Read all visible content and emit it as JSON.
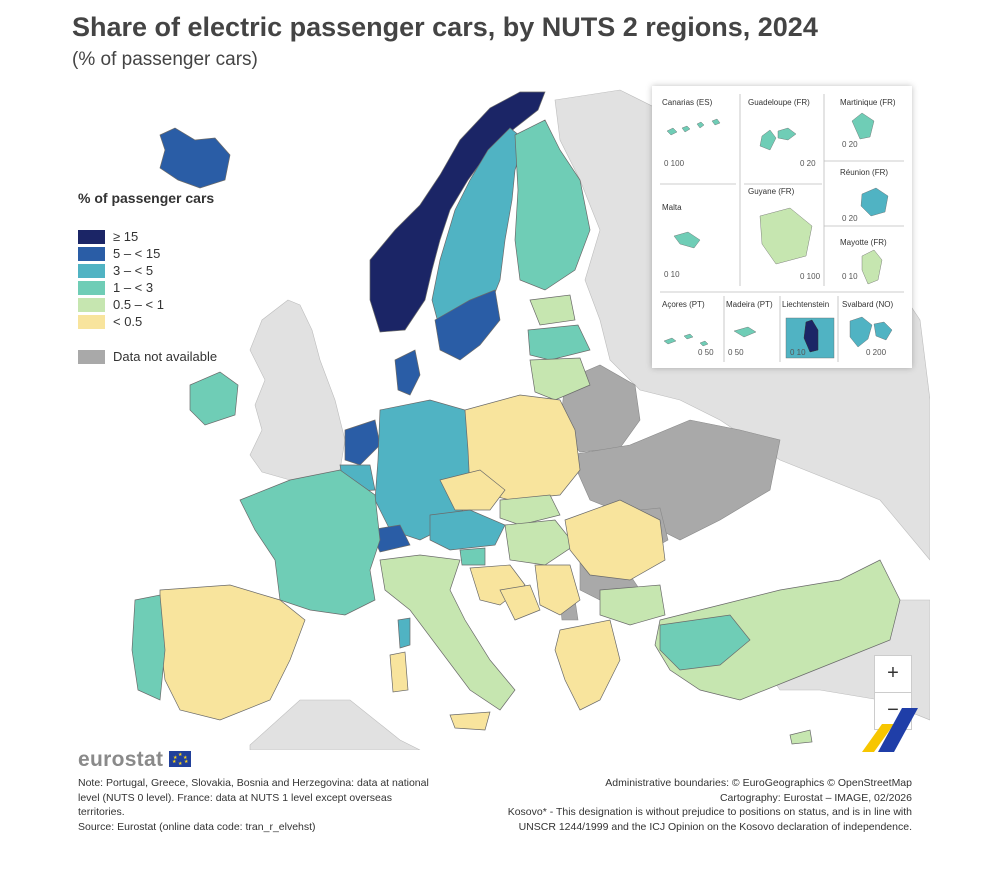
{
  "header": {
    "title": "Share of electric passenger cars, by NUTS 2 regions, 2024",
    "subtitle": "(% of passenger cars)"
  },
  "legend": {
    "title": "% of passenger cars",
    "classes": [
      {
        "label": "≥ 15",
        "color": "#1b2566"
      },
      {
        "label": "5 – < 15",
        "color": "#2a5da6"
      },
      {
        "label": "3 – < 5",
        "color": "#50b3c3"
      },
      {
        "label": "1 – < 3",
        "color": "#6fcdb6"
      },
      {
        "label": "0.5 – < 1",
        "color": "#c6e6b0"
      },
      {
        "label": "< 0.5",
        "color": "#f8e49d"
      }
    ],
    "na": {
      "label": "Data not available",
      "color": "#a9a9a9"
    }
  },
  "colors": {
    "non_eu": "#e1e1e1",
    "sea": "#ffffff",
    "border": "#707070"
  },
  "insets": {
    "canarias": {
      "label": "Canarias (ES)",
      "scale": "0   100"
    },
    "guadeloupe": {
      "label": "Guadeloupe (FR)",
      "scale": "0   20"
    },
    "martinique": {
      "label": "Martinique (FR)",
      "scale": "0   20"
    },
    "reunion": {
      "label": "Réunion (FR)",
      "scale": "0   20"
    },
    "malta": {
      "label": "Malta",
      "scale": "0   10"
    },
    "guyane": {
      "label": "Guyane (FR)",
      "scale": "0   100"
    },
    "mayotte": {
      "label": "Mayotte (FR)",
      "scale": "0   10"
    },
    "acores": {
      "label": "Açores (PT)",
      "scale": "0   50"
    },
    "madeira": {
      "label": "Madeira (PT)",
      "scale": "0    50"
    },
    "liechtenstein": {
      "label": "Liechtenstein",
      "scale": "0   10"
    },
    "svalbard": {
      "label": "Svalbard (NO)",
      "scale": "0   200"
    }
  },
  "zoom": {
    "in": "+",
    "out": "−"
  },
  "footer": {
    "logo": "eurostat",
    "note_left": [
      "Note: Portugal, Greece, Slovakia, Bosnia and Herzegovina: data at national",
      "level (NUTS 0 level). France: data at NUTS 1 level except overseas",
      "territories.",
      "Source: Eurostat (online data code: tran_r_elvehst)"
    ],
    "note_right": [
      "Administrative boundaries: © EuroGeographics © OpenStreetMap",
      "Cartography: Eurostat – IMAGE, 02/2026",
      "Kosovo* - This designation is without prejudice to positions on status, and is in line with",
      "UNSCR 1244/1999 and the ICJ Opinion on the Kosovo declaration of independence."
    ]
  }
}
